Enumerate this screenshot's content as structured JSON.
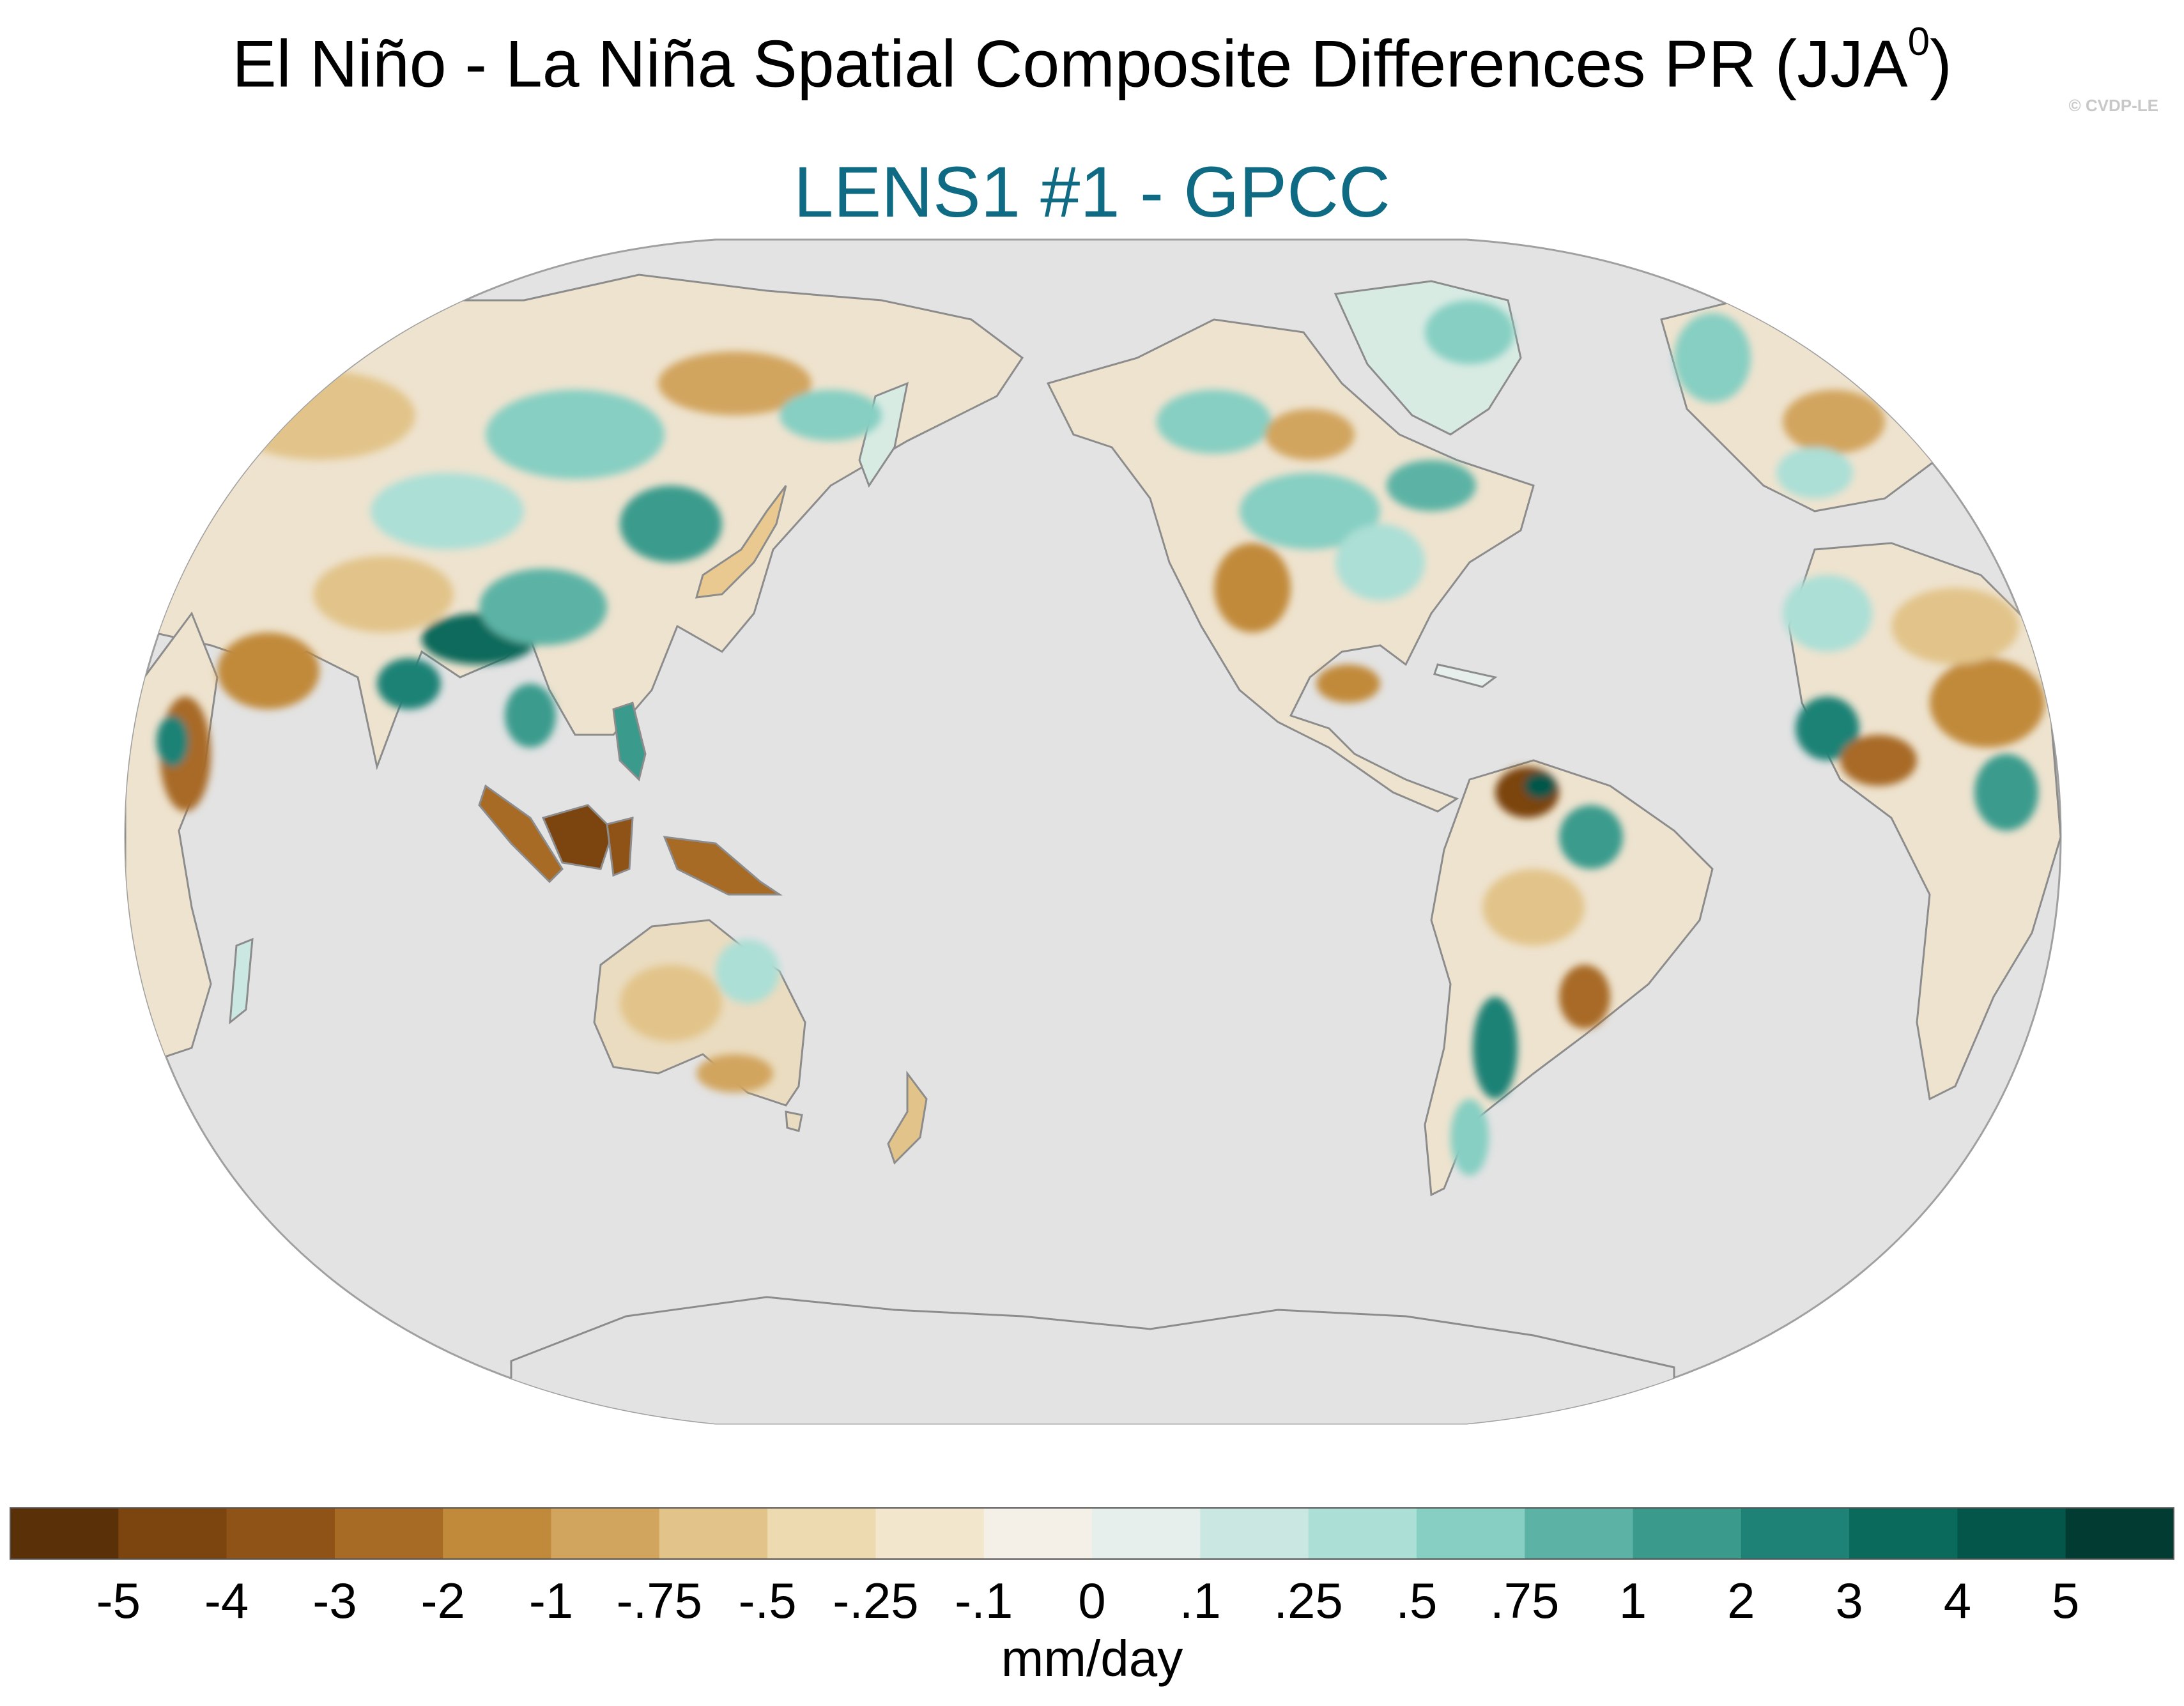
{
  "figure": {
    "title": "El Niño - La Niña Spatial Composite Differences PR (JJA",
    "title_superscript": "0",
    "title_close": ")",
    "credit": "© CVDP-LE",
    "subtitle": "LENS1 #1 - GPCC"
  },
  "map": {
    "projection": "Robinson",
    "central_longitude": 180,
    "ocean_color": "#e3e3e3",
    "coastline_color": "#8c8c8c"
  },
  "colorbar": {
    "labels": [
      "-5",
      "-4",
      "-3",
      "-2",
      "-1",
      "-.75",
      "-.5",
      "-.25",
      "-.1",
      "0",
      ".1",
      ".25",
      ".5",
      ".75",
      "1",
      "2",
      "3",
      "4",
      "5"
    ],
    "colors": [
      "#5a3009",
      "#7c4510",
      "#8f5317",
      "#a86b26",
      "#c18a3b",
      "#d2a55e",
      "#e2c48a",
      "#eddab0",
      "#f2e6cc",
      "#f4f0e8",
      "#e6efec",
      "#cbe7e1",
      "#acdfd6",
      "#86cfc2",
      "#5cb3a5",
      "#3a9b8d",
      "#1f8276",
      "#0a6a5c",
      "#04564a",
      "#023b31"
    ],
    "units": "mm/day"
  }
}
